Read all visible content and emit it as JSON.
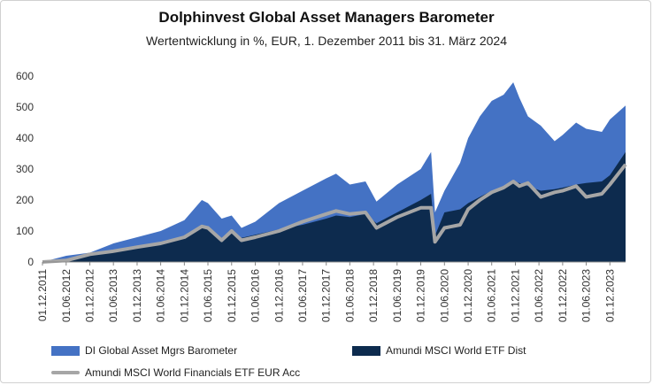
{
  "title": "Dolphinvest Global Asset Managers Barometer",
  "subtitle": "Wertentwicklung in %, EUR, 1. Dezember 2011 bis 31. März 2024",
  "chart_data": {
    "type": "area",
    "title": "Dolphinvest Global Asset Managers Barometer",
    "subtitle": "Wertentwicklung in %, EUR, 1. Dezember 2011 bis 31. März 2024",
    "ylim": [
      0,
      600
    ],
    "yticks": [
      "0",
      "100",
      "200",
      "300",
      "400",
      "500",
      "600"
    ],
    "xlim": [
      "2011-12-01",
      "2024-03-31"
    ],
    "xticks": [
      "01.12.2011",
      "01.06.2012",
      "01.12.2012",
      "01.06.2013",
      "01.12.2013",
      "01.06.2014",
      "01.12.2014",
      "01.06.2015",
      "01.12.2015",
      "01.06.2016",
      "01.12.2016",
      "01.06.2017",
      "01.12.2017",
      "01.06.2018",
      "01.12.2018",
      "01.06.2019",
      "01.12.2019",
      "01.06.2020",
      "01.12.2020",
      "01.06.2021",
      "01.12.2021",
      "01.06.2022",
      "01.12.2022",
      "01.06.2023",
      "01.12.2023"
    ],
    "grid": false,
    "legend_position": "bottom",
    "x": [
      "2011-12-01",
      "2012-06-01",
      "2012-12-01",
      "2013-06-01",
      "2013-12-01",
      "2014-06-01",
      "2014-12-01",
      "2015-04-15",
      "2015-06-01",
      "2015-09-15",
      "2015-12-01",
      "2016-02-15",
      "2016-06-01",
      "2016-12-01",
      "2017-06-01",
      "2017-12-01",
      "2018-02-15",
      "2018-06-01",
      "2018-09-30",
      "2018-12-24",
      "2019-06-01",
      "2019-12-01",
      "2020-02-19",
      "2020-03-20",
      "2020-06-01",
      "2020-09-30",
      "2020-12-01",
      "2021-03-01",
      "2021-06-01",
      "2021-09-01",
      "2021-11-15",
      "2022-01-01",
      "2022-03-08",
      "2022-06-15",
      "2022-09-30",
      "2022-12-01",
      "2023-03-15",
      "2023-06-01",
      "2023-09-30",
      "2023-12-01",
      "2024-03-31"
    ],
    "series": [
      {
        "name": "DI Global Asset Mgrs Barometer",
        "color": "#4472c4",
        "values": [
          0,
          20,
          30,
          60,
          80,
          100,
          135,
          200,
          190,
          140,
          150,
          110,
          130,
          190,
          230,
          270,
          285,
          250,
          260,
          195,
          250,
          300,
          355,
          160,
          230,
          320,
          400,
          470,
          520,
          540,
          580,
          530,
          470,
          440,
          390,
          410,
          450,
          430,
          420,
          460,
          505
        ]
      },
      {
        "name": "Amundi MSCI World ETF Dist",
        "color": "#0d2b4e",
        "values": [
          0,
          10,
          22,
          38,
          50,
          60,
          80,
          110,
          105,
          75,
          92,
          78,
          88,
          105,
          120,
          140,
          150,
          145,
          155,
          125,
          160,
          200,
          220,
          85,
          160,
          170,
          190,
          210,
          230,
          245,
          260,
          255,
          245,
          230,
          235,
          240,
          250,
          255,
          260,
          280,
          355
        ]
      },
      {
        "name": "Amundi MSCI World Financials ETF EUR Acc",
        "color": "#a6a6a6",
        "values": [
          0,
          5,
          25,
          35,
          48,
          60,
          80,
          115,
          110,
          70,
          100,
          70,
          80,
          100,
          130,
          155,
          165,
          155,
          160,
          110,
          145,
          175,
          175,
          65,
          110,
          120,
          170,
          200,
          225,
          240,
          260,
          245,
          255,
          210,
          225,
          230,
          245,
          210,
          220,
          250,
          315
        ]
      }
    ]
  }
}
